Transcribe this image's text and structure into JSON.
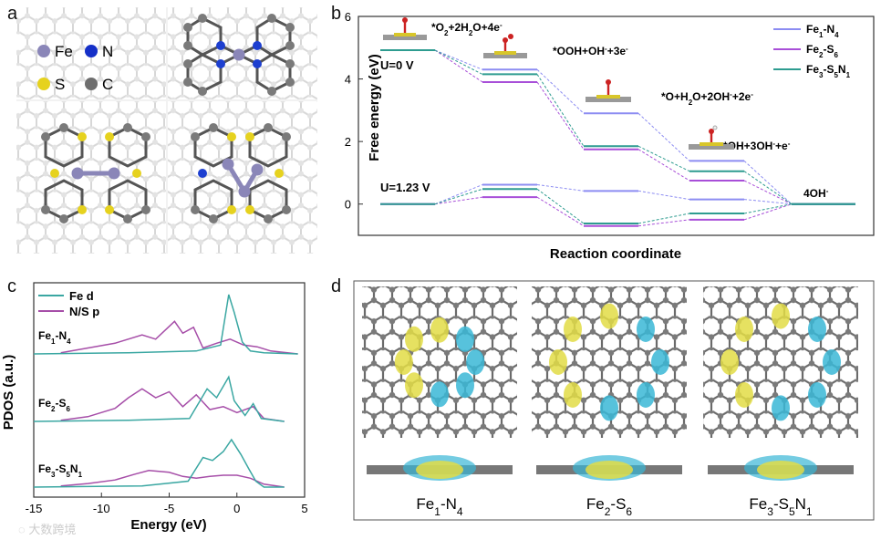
{
  "panels": {
    "a": "a",
    "b": "b",
    "c": "c",
    "d": "d"
  },
  "panel_a": {
    "legend": [
      {
        "symbol": "Fe",
        "color": "#8A86B8"
      },
      {
        "symbol": "N",
        "color": "#1530C8"
      },
      {
        "symbol": "S",
        "color": "#E6D21E"
      },
      {
        "symbol": "C",
        "color": "#6E6E6E"
      }
    ]
  },
  "chart_data": [
    {
      "type": "line",
      "panel": "b",
      "title": "",
      "xlabel": "Reaction coordinate",
      "ylabel": "Free energy (eV)",
      "ylim": [
        -1,
        6
      ],
      "yticks": [
        0,
        2,
        4,
        6
      ],
      "series": [
        {
          "name": "Fe1-N4",
          "name_parts": [
            "Fe",
            "1",
            "-N",
            "4"
          ],
          "color": "#8C8CF2",
          "u0": [
            4.92,
            4.3,
            2.9,
            1.38,
            0.0
          ],
          "u123": [
            0.0,
            0.62,
            0.42,
            0.15,
            0.0
          ]
        },
        {
          "name": "Fe2-S6",
          "name_parts": [
            "Fe",
            "2",
            "-S",
            "6"
          ],
          "color": "#A84FD8",
          "u0": [
            4.92,
            3.9,
            1.75,
            0.75,
            0.0
          ],
          "u123": [
            0.0,
            0.22,
            -0.7,
            -0.5,
            0.0
          ]
        },
        {
          "name": "Fe3-S5N1",
          "name_parts": [
            "Fe",
            "3",
            "-S",
            "5",
            "N",
            "1"
          ],
          "color": "#2E9C90",
          "u0": [
            4.92,
            4.15,
            1.85,
            1.05,
            0.0
          ],
          "u123": [
            0.0,
            0.48,
            -0.62,
            -0.3,
            0.0
          ]
        }
      ],
      "annotations": {
        "u0_label": "U=0 V",
        "u123_label": "U=1.23 V",
        "step1": "*O2+2H2O+4e-",
        "step2": "*OOH+OH-+3e-",
        "step3": "*O+H2O+2OH-+2e-",
        "step4": "*OH+3OH-+e-",
        "step5": "4OH-"
      }
    },
    {
      "type": "line",
      "panel": "c",
      "xlabel": "Energy (eV)",
      "ylabel": "PDOS (a.u.)",
      "xlim": [
        -15,
        5
      ],
      "xticks": [
        -15,
        -10,
        -5,
        0,
        5
      ],
      "legend": [
        {
          "name": "Fe d",
          "color": "#3AA7A2"
        },
        {
          "name": "N/S p",
          "color": "#A64EA8"
        }
      ],
      "systems": [
        {
          "label_parts": [
            "Fe",
            "1",
            "-N",
            "4"
          ],
          "fe_d": [
            [
              -15,
              0
            ],
            [
              -8,
              0.02
            ],
            [
              -3,
              0.05
            ],
            [
              -1.2,
              0.15
            ],
            [
              -0.6,
              1.0
            ],
            [
              -0.2,
              0.7
            ],
            [
              0.4,
              0.2
            ],
            [
              1,
              0.05
            ],
            [
              2,
              0.02
            ],
            [
              4.5,
              0
            ]
          ],
          "ns_p": [
            [
              -13,
              0.02
            ],
            [
              -11,
              0.1
            ],
            [
              -9,
              0.18
            ],
            [
              -7,
              0.32
            ],
            [
              -6,
              0.25
            ],
            [
              -4.6,
              0.55
            ],
            [
              -4,
              0.35
            ],
            [
              -3.2,
              0.45
            ],
            [
              -2.5,
              0.1
            ],
            [
              -1.5,
              0.18
            ],
            [
              -0.5,
              0.25
            ],
            [
              0.5,
              0.15
            ],
            [
              1.5,
              0.12
            ],
            [
              2.5,
              0.05
            ],
            [
              4.5,
              0
            ]
          ]
        },
        {
          "label_parts": [
            "Fe",
            "2",
            "-S",
            "6"
          ],
          "fe_d": [
            [
              -15,
              0
            ],
            [
              -8,
              0.02
            ],
            [
              -3.5,
              0.05
            ],
            [
              -2.2,
              0.55
            ],
            [
              -1.5,
              0.4
            ],
            [
              -0.6,
              0.75
            ],
            [
              -0.2,
              0.35
            ],
            [
              0.6,
              0.1
            ],
            [
              1.2,
              0.3
            ],
            [
              1.8,
              0.05
            ],
            [
              3.5,
              0
            ]
          ],
          "ns_p": [
            [
              -13,
              0.02
            ],
            [
              -11,
              0.08
            ],
            [
              -9,
              0.22
            ],
            [
              -8,
              0.4
            ],
            [
              -7,
              0.55
            ],
            [
              -6,
              0.4
            ],
            [
              -5,
              0.5
            ],
            [
              -4,
              0.25
            ],
            [
              -3,
              0.45
            ],
            [
              -2,
              0.2
            ],
            [
              -1,
              0.25
            ],
            [
              0,
              0.15
            ],
            [
              1.2,
              0.25
            ],
            [
              2,
              0.05
            ],
            [
              3.5,
              0
            ]
          ]
        },
        {
          "label_parts": [
            "Fe",
            "3",
            "-S",
            "5",
            "N",
            "1"
          ],
          "fe_d": [
            [
              -15,
              0
            ],
            [
              -7,
              0.02
            ],
            [
              -3.6,
              0.1
            ],
            [
              -2.5,
              0.5
            ],
            [
              -1.8,
              0.45
            ],
            [
              -1.0,
              0.6
            ],
            [
              -0.4,
              0.8
            ],
            [
              0.3,
              0.55
            ],
            [
              0.9,
              0.3
            ],
            [
              1.4,
              0.1
            ],
            [
              2,
              0
            ],
            [
              3.5,
              0
            ]
          ],
          "ns_p": [
            [
              -13,
              0.02
            ],
            [
              -11,
              0.06
            ],
            [
              -9,
              0.12
            ],
            [
              -7.5,
              0.22
            ],
            [
              -6.5,
              0.28
            ],
            [
              -5,
              0.25
            ],
            [
              -4,
              0.18
            ],
            [
              -3,
              0.15
            ],
            [
              -2,
              0.18
            ],
            [
              -1,
              0.2
            ],
            [
              0,
              0.2
            ],
            [
              1,
              0.15
            ],
            [
              2,
              0.05
            ],
            [
              3.5,
              0
            ]
          ]
        }
      ]
    }
  ],
  "panel_d": {
    "labels": [
      {
        "parts": [
          "Fe",
          "1",
          "-N",
          "4"
        ]
      },
      {
        "parts": [
          "Fe",
          "2",
          "-S",
          "6"
        ]
      },
      {
        "parts": [
          "Fe",
          "3",
          "-S",
          "5",
          "N",
          "1"
        ]
      }
    ]
  },
  "watermark": "大数跨境"
}
